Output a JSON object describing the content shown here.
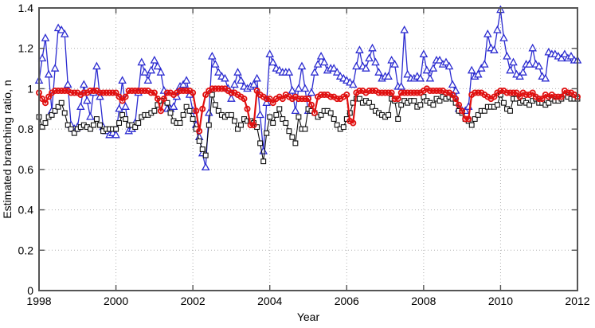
{
  "chart_data": {
    "type": "line",
    "title": "",
    "xlabel": "Year",
    "ylabel": "Estimated branching ratio, n",
    "xlim": [
      1998,
      2012
    ],
    "ylim": [
      0,
      1.4
    ],
    "x_ticks": [
      1998,
      2000,
      2002,
      2004,
      2006,
      2008,
      2010,
      2012
    ],
    "x_tick_labels": [
      "1998",
      "2000",
      "2002",
      "2004",
      "2006",
      "2008",
      "2010",
      "2012"
    ],
    "y_ticks": [
      0,
      0.2,
      0.4,
      0.6,
      0.8,
      1.0,
      1.2,
      1.4
    ],
    "y_tick_labels": [
      "0",
      "0.2",
      "0.4",
      "0.6",
      "0.8",
      "1",
      "1.2",
      "1.4"
    ],
    "grid": "dotted",
    "legend": "none",
    "x_start_year": 1998,
    "x_step_months": 1,
    "colors": {
      "grid": "#b0b0b0",
      "axis": "#555555",
      "blue": "#2b2bd0",
      "red": "#e01010",
      "black": "#0d0d0d"
    },
    "series": [
      {
        "name": "blue-triangles",
        "marker": "triangle",
        "color": "#2b2bd0",
        "line_width": 1.3,
        "values": [
          1.04,
          1.15,
          1.25,
          1.07,
          0.89,
          1.1,
          1.3,
          1.29,
          1.27,
          1.02,
          0.82,
          0.8,
          0.81,
          0.91,
          1.02,
          0.94,
          0.86,
          0.98,
          1.11,
          0.96,
          0.81,
          0.79,
          0.77,
          0.78,
          0.77,
          0.9,
          1.04,
          0.91,
          0.79,
          0.8,
          0.83,
          0.98,
          1.13,
          1.08,
          1.04,
          1.09,
          1.14,
          1.11,
          1.08,
          0.99,
          0.9,
          0.9,
          0.91,
          0.96,
          1.01,
          1.02,
          1.04,
          0.97,
          0.89,
          0.82,
          0.76,
          0.68,
          0.61,
          0.88,
          1.16,
          1.12,
          1.08,
          1.06,
          1.05,
          1.0,
          0.95,
          1.02,
          1.08,
          1.04,
          1.01,
          1.0,
          1.01,
          1.02,
          1.05,
          0.87,
          0.69,
          0.93,
          1.17,
          1.13,
          1.1,
          1.09,
          1.08,
          1.08,
          1.08,
          0.99,
          0.89,
          1.0,
          1.11,
          1.0,
          0.89,
          0.98,
          1.08,
          1.12,
          1.16,
          1.13,
          1.09,
          1.1,
          1.1,
          1.08,
          1.06,
          1.05,
          1.04,
          1.03,
          1.02,
          1.11,
          1.19,
          1.11,
          1.1,
          1.15,
          1.2,
          1.13,
          1.08,
          1.05,
          1.06,
          1.06,
          1.14,
          1.12,
          1.01,
          1.01,
          1.29,
          1.07,
          1.05,
          1.05,
          1.06,
          1.05,
          1.17,
          1.09,
          1.05,
          1.1,
          1.14,
          1.14,
          1.12,
          1.13,
          1.11,
          1.02,
          0.99,
          0.9,
          0.89,
          0.89,
          0.91,
          1.09,
          1.06,
          1.07,
          1.1,
          1.12,
          1.27,
          1.2,
          1.19,
          1.29,
          1.39,
          1.25,
          1.16,
          1.09,
          1.13,
          1.07,
          1.06,
          1.08,
          1.12,
          1.12,
          1.2,
          1.12,
          1.11,
          1.06,
          1.05,
          1.18,
          1.17,
          1.17,
          1.16,
          1.15,
          1.17,
          1.15,
          1.16,
          1.14,
          1.14
        ]
      },
      {
        "name": "black-squares",
        "marker": "square",
        "color": "#0d0d0d",
        "line_width": 1.1,
        "values": [
          0.86,
          0.81,
          0.83,
          0.86,
          0.87,
          0.89,
          0.91,
          0.93,
          0.88,
          0.82,
          0.8,
          0.78,
          0.8,
          0.81,
          0.82,
          0.81,
          0.8,
          0.82,
          0.85,
          0.82,
          0.79,
          0.8,
          0.8,
          0.8,
          0.8,
          0.83,
          0.87,
          0.85,
          0.82,
          0.82,
          0.81,
          0.83,
          0.86,
          0.87,
          0.87,
          0.88,
          0.89,
          0.92,
          0.94,
          0.94,
          0.93,
          0.88,
          0.84,
          0.83,
          0.83,
          0.87,
          0.91,
          0.89,
          0.85,
          0.8,
          0.74,
          0.7,
          0.67,
          0.82,
          0.97,
          0.92,
          0.89,
          0.87,
          0.86,
          0.87,
          0.87,
          0.84,
          0.8,
          0.82,
          0.85,
          0.84,
          0.84,
          0.83,
          0.81,
          0.73,
          0.64,
          0.78,
          0.86,
          0.83,
          0.87,
          0.9,
          0.85,
          0.83,
          0.79,
          0.76,
          0.73,
          0.86,
          0.8,
          0.8,
          0.9,
          0.89,
          0.88,
          0.86,
          0.87,
          0.89,
          0.89,
          0.88,
          0.85,
          0.82,
          0.8,
          0.81,
          0.85,
          0.88,
          0.93,
          0.95,
          0.95,
          0.93,
          0.94,
          0.93,
          0.91,
          0.89,
          0.88,
          0.87,
          0.86,
          0.87,
          0.95,
          0.94,
          0.85,
          0.92,
          0.94,
          0.93,
          0.94,
          0.94,
          0.91,
          0.92,
          0.96,
          0.94,
          0.93,
          0.92,
          0.95,
          0.94,
          0.96,
          0.95,
          0.96,
          0.95,
          0.93,
          0.89,
          0.88,
          0.85,
          0.84,
          0.82,
          0.85,
          0.87,
          0.89,
          0.89,
          0.91,
          0.91,
          0.91,
          0.92,
          0.97,
          0.93,
          0.9,
          0.89,
          0.95,
          0.95,
          0.93,
          0.94,
          0.93,
          0.92,
          0.94,
          0.95,
          0.93,
          0.93,
          0.92,
          0.93,
          0.95,
          0.94,
          0.94,
          0.95,
          0.97,
          0.96,
          0.95,
          0.95,
          0.95
        ]
      },
      {
        "name": "red-circles",
        "marker": "circle",
        "color": "#e01010",
        "line_width": 2.2,
        "values": [
          0.98,
          0.95,
          0.93,
          0.96,
          0.98,
          0.99,
          0.99,
          0.99,
          0.99,
          0.99,
          0.98,
          0.98,
          0.98,
          0.97,
          0.98,
          0.98,
          0.99,
          0.99,
          0.99,
          0.98,
          0.98,
          0.98,
          0.98,
          0.98,
          0.98,
          0.96,
          0.94,
          0.96,
          0.99,
          0.99,
          0.99,
          0.99,
          0.99,
          0.99,
          0.99,
          0.98,
          0.98,
          0.95,
          0.89,
          0.95,
          0.98,
          0.98,
          0.97,
          0.98,
          0.99,
          0.99,
          0.99,
          0.99,
          0.98,
          0.89,
          0.79,
          0.9,
          0.97,
          0.99,
          1.0,
          1.0,
          1.0,
          1.0,
          1.0,
          0.99,
          0.98,
          0.98,
          0.97,
          0.96,
          0.95,
          0.9,
          0.82,
          0.82,
          0.99,
          0.97,
          0.96,
          0.95,
          0.95,
          0.93,
          0.95,
          0.96,
          0.95,
          0.97,
          0.96,
          0.95,
          0.96,
          0.95,
          0.95,
          0.95,
          0.95,
          0.92,
          0.88,
          0.96,
          0.97,
          0.97,
          0.97,
          0.96,
          0.96,
          0.95,
          0.95,
          0.96,
          0.97,
          0.84,
          0.83,
          0.98,
          0.99,
          0.99,
          0.98,
          0.99,
          0.99,
          0.99,
          0.98,
          0.98,
          0.98,
          0.98,
          0.98,
          0.95,
          0.95,
          0.98,
          0.98,
          0.98,
          0.98,
          0.98,
          0.98,
          0.98,
          0.99,
          1.0,
          0.99,
          0.99,
          0.99,
          0.99,
          0.99,
          0.98,
          0.98,
          0.97,
          0.95,
          0.92,
          0.89,
          0.85,
          0.85,
          0.97,
          0.98,
          0.98,
          0.98,
          0.97,
          0.96,
          0.95,
          0.96,
          0.98,
          0.99,
          0.99,
          0.98,
          0.98,
          0.98,
          0.98,
          0.96,
          0.98,
          0.97,
          0.97,
          0.98,
          0.96,
          0.95,
          0.95,
          0.97,
          0.96,
          0.97,
          0.96,
          0.96,
          0.96,
          0.99,
          0.98,
          0.98,
          0.97,
          0.96
        ]
      }
    ]
  }
}
